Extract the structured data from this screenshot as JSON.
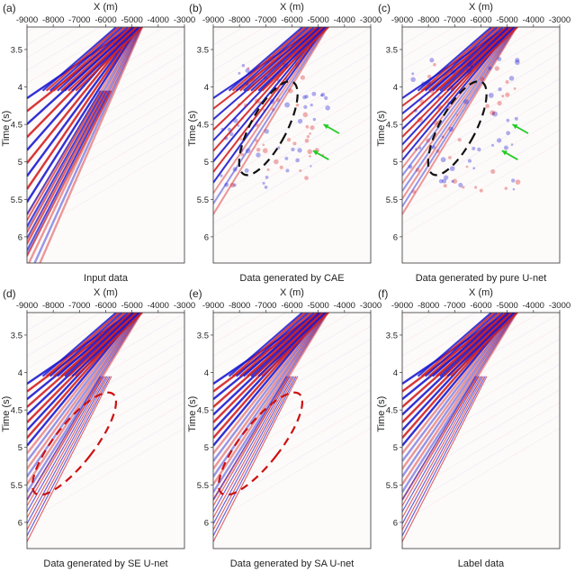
{
  "figure": {
    "panels": [
      {
        "letter": "(a)",
        "caption": "Input data",
        "xlabel": "X (m)",
        "ylabel": "Time (s)",
        "variant": "input",
        "markers": []
      },
      {
        "letter": "(b)",
        "caption": "Data generated by CAE",
        "xlabel": "X (m)",
        "ylabel": "Time (s)",
        "variant": "cae",
        "markers": [
          "black-dashed-ellipse",
          "green-arrows"
        ]
      },
      {
        "letter": "(c)",
        "caption": "Data generated by pure U-net",
        "xlabel": "X (m)",
        "ylabel": "Time (s)",
        "variant": "unet",
        "markers": [
          "black-dashed-ellipse",
          "green-arrows"
        ]
      },
      {
        "letter": "(d)",
        "caption": "Data generated by SE U-net",
        "xlabel": "X (m)",
        "ylabel": "Time (s)",
        "variant": "se",
        "markers": [
          "red-dashed-ellipse"
        ]
      },
      {
        "letter": "(e)",
        "caption": "Data generated by SA U-net",
        "xlabel": "X (m)",
        "ylabel": "Time (s)",
        "variant": "sa",
        "markers": [
          "red-dashed-ellipse"
        ]
      },
      {
        "letter": "(f)",
        "caption": "Label data",
        "xlabel": "X (m)",
        "ylabel": "Time (s)",
        "variant": "label",
        "markers": []
      }
    ],
    "x_ticks": [
      "-9000",
      "-8000",
      "-7000",
      "-6000",
      "-5000",
      "-4000",
      "-3000"
    ],
    "y_ticks": [
      "3.5",
      "4",
      "4.5",
      "5",
      "5.5",
      "6"
    ],
    "x_range": [
      -9000,
      -3000
    ],
    "y_range": [
      3.2,
      6.35
    ],
    "colors": {
      "positive": "#d42020",
      "negative": "#1a1ad0",
      "black_ellipse": "#111111",
      "red_ellipse": "#cc1111",
      "arrow": "#22cc22"
    }
  }
}
